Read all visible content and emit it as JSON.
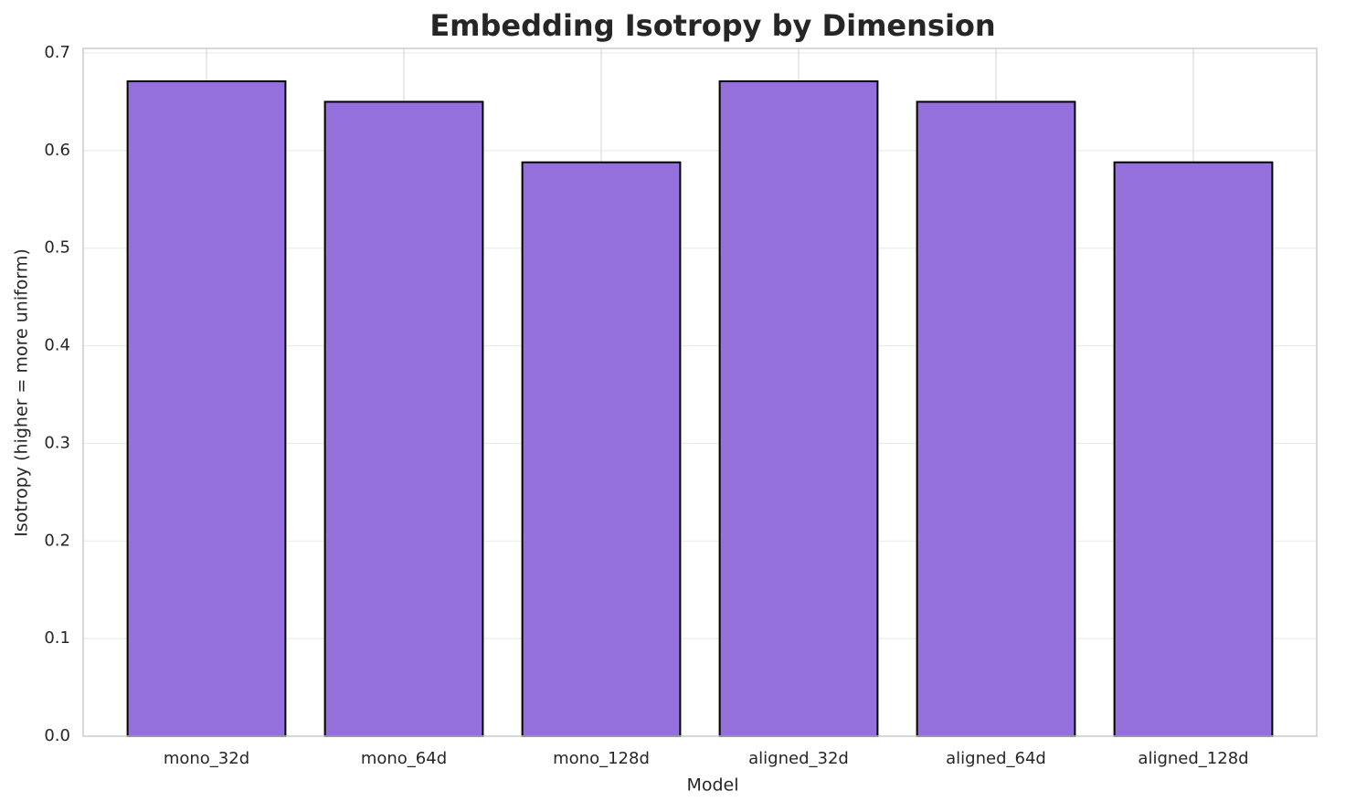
{
  "chart_data": {
    "type": "bar",
    "title": "Embedding Isotropy by Dimension",
    "x_label": "Model",
    "y_label": "Isotropy (higher = more uniform)",
    "categories": [
      "mono_32d",
      "mono_64d",
      "mono_128d",
      "aligned_32d",
      "aligned_64d",
      "aligned_128d"
    ],
    "values": [
      0.671,
      0.65,
      0.588,
      0.671,
      0.65,
      0.588
    ],
    "color": "#9370db",
    "edgecolor": "#000000",
    "ylim": [
      0,
      0.7047
    ],
    "yticks": [
      0.0,
      0.1,
      0.2,
      0.3,
      0.4,
      0.5,
      0.6,
      0.7
    ],
    "grid": true
  }
}
